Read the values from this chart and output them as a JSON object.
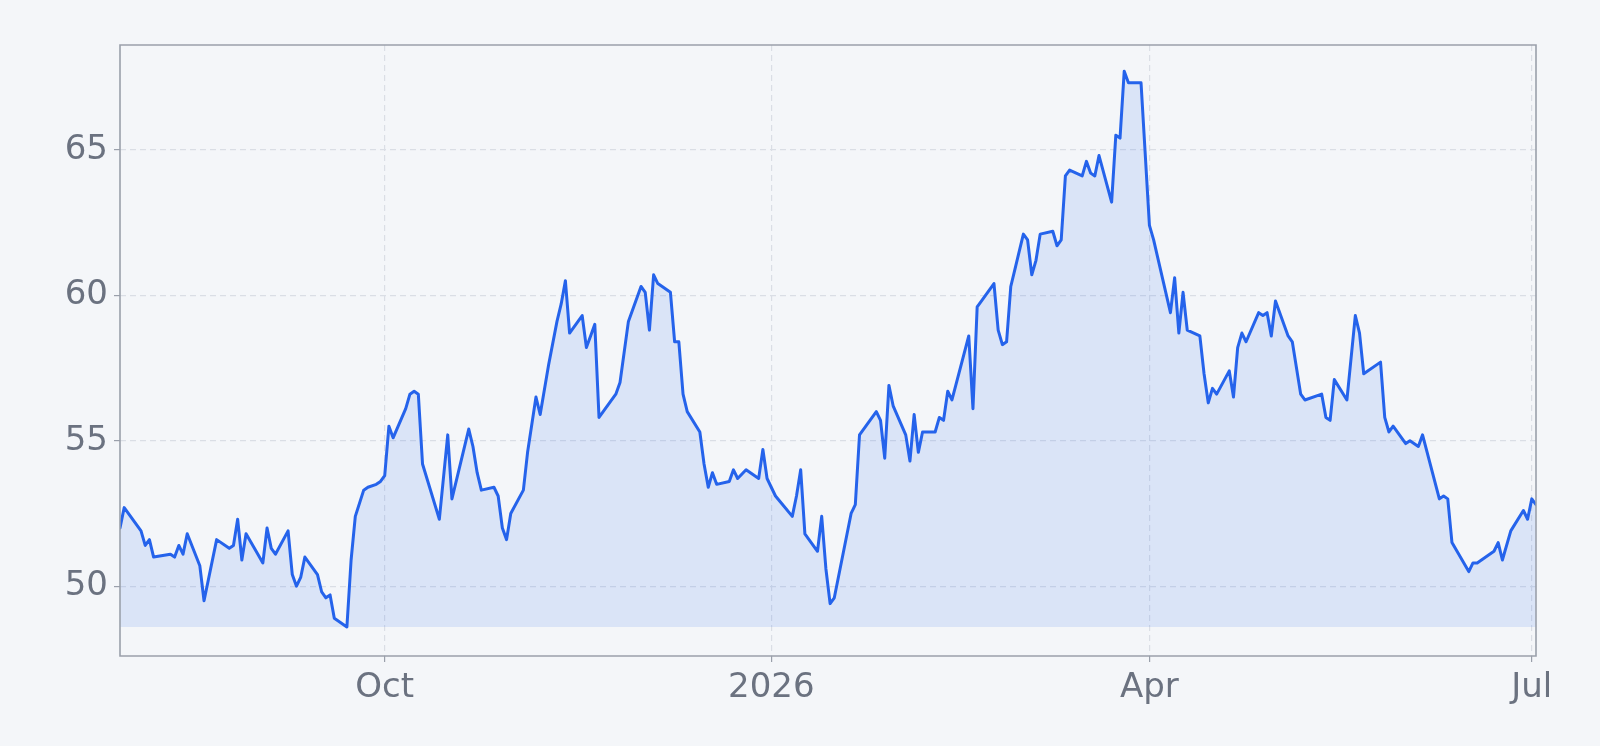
{
  "chart_data": {
    "type": "area",
    "color": "#2563eb",
    "grid": true,
    "xlim": [
      "2025-07-30",
      "2026-07-02"
    ],
    "xticks": [
      {
        "value": "2025-10-01",
        "label": "Oct"
      },
      {
        "value": "2026-01-01",
        "label": "2026"
      },
      {
        "value": "2026-04-01",
        "label": "Apr"
      },
      {
        "value": "2026-07-01",
        "label": "Jul"
      }
    ],
    "ylim": [
      47.6,
      68.6
    ],
    "yticks": [
      50,
      55,
      60,
      65
    ],
    "x": [
      "2025-07-30",
      "2025-07-31",
      "2025-08-04",
      "2025-08-05",
      "2025-08-06",
      "2025-08-07",
      "2025-08-11",
      "2025-08-12",
      "2025-08-13",
      "2025-08-14",
      "2025-08-15",
      "2025-08-18",
      "2025-08-19",
      "2025-08-22",
      "2025-08-25",
      "2025-08-26",
      "2025-08-27",
      "2025-08-28",
      "2025-08-29",
      "2025-09-02",
      "2025-09-03",
      "2025-09-04",
      "2025-09-05",
      "2025-09-08",
      "2025-09-09",
      "2025-09-10",
      "2025-09-11",
      "2025-09-12",
      "2025-09-15",
      "2025-09-16",
      "2025-09-17",
      "2025-09-18",
      "2025-09-19",
      "2025-09-22",
      "2025-09-23",
      "2025-09-24",
      "2025-09-26",
      "2025-09-27",
      "2025-09-29",
      "2025-09-30",
      "2025-10-01",
      "2025-10-02",
      "2025-10-03",
      "2025-10-06",
      "2025-10-07",
      "2025-10-08",
      "2025-10-09",
      "2025-10-10",
      "2025-10-14",
      "2025-10-16",
      "2025-10-17",
      "2025-10-21",
      "2025-10-22",
      "2025-10-23",
      "2025-10-24",
      "2025-10-27",
      "2025-10-28",
      "2025-10-29",
      "2025-10-30",
      "2025-10-31",
      "2025-11-03",
      "2025-11-04",
      "2025-11-06",
      "2025-11-07",
      "2025-11-09",
      "2025-11-11",
      "2025-11-12",
      "2025-11-13",
      "2025-11-14",
      "2025-11-17",
      "2025-11-18",
      "2025-11-19",
      "2025-11-20",
      "2025-11-21",
      "2025-11-25",
      "2025-11-26",
      "2025-11-28",
      "2025-12-01",
      "2025-12-02",
      "2025-12-03",
      "2025-12-04",
      "2025-12-05",
      "2025-12-08",
      "2025-12-09",
      "2025-12-10",
      "2025-12-11",
      "2025-12-12",
      "2025-12-15",
      "2025-12-16",
      "2025-12-17",
      "2025-12-18",
      "2025-12-19",
      "2025-12-22",
      "2025-12-23",
      "2025-12-24",
      "2025-12-26",
      "2025-12-29",
      "2025-12-30",
      "2025-12-31",
      "2026-01-02",
      "2026-01-06",
      "2026-01-07",
      "2026-01-08",
      "2026-01-09",
      "2026-01-12",
      "2026-01-13",
      "2026-01-14",
      "2026-01-15",
      "2026-01-16",
      "2026-01-20",
      "2026-01-21",
      "2026-01-22",
      "2026-01-26",
      "2026-01-27",
      "2026-01-28",
      "2026-01-29",
      "2026-01-30",
      "2026-02-02",
      "2026-02-03",
      "2026-02-04",
      "2026-02-05",
      "2026-02-06",
      "2026-02-09",
      "2026-02-10",
      "2026-02-11",
      "2026-02-12",
      "2026-02-13",
      "2026-02-17",
      "2026-02-18",
      "2026-02-19",
      "2026-02-20",
      "2026-02-23",
      "2026-02-24",
      "2026-02-25",
      "2026-02-26",
      "2026-02-27",
      "2026-03-02",
      "2026-03-03",
      "2026-03-04",
      "2026-03-05",
      "2026-03-06",
      "2026-03-09",
      "2026-03-10",
      "2026-03-11",
      "2026-03-12",
      "2026-03-13",
      "2026-03-16",
      "2026-03-17",
      "2026-03-18",
      "2026-03-19",
      "2026-03-20",
      "2026-03-23",
      "2026-03-24",
      "2026-03-25",
      "2026-03-26",
      "2026-03-27",
      "2026-03-30",
      "2026-04-01",
      "2026-04-02",
      "2026-04-06",
      "2026-04-07",
      "2026-04-08",
      "2026-04-09",
      "2026-04-10",
      "2026-04-13",
      "2026-04-14",
      "2026-04-15",
      "2026-04-16",
      "2026-04-17",
      "2026-04-20",
      "2026-04-21",
      "2026-04-22",
      "2026-04-23",
      "2026-04-24",
      "2026-04-27",
      "2026-04-28",
      "2026-04-29",
      "2026-04-30",
      "2026-05-01",
      "2026-05-04",
      "2026-05-05",
      "2026-05-07",
      "2026-05-08",
      "2026-05-12",
      "2026-05-13",
      "2026-05-14",
      "2026-05-15",
      "2026-05-18",
      "2026-05-20",
      "2026-05-21",
      "2026-05-22",
      "2026-05-26",
      "2026-05-27",
      "2026-05-28",
      "2026-05-29",
      "2026-06-01",
      "2026-06-02",
      "2026-06-04",
      "2026-06-05",
      "2026-06-09",
      "2026-06-10",
      "2026-06-11",
      "2026-06-12",
      "2026-06-16",
      "2026-06-17",
      "2026-06-18",
      "2026-06-22",
      "2026-06-23",
      "2026-06-24",
      "2026-06-26",
      "2026-06-29",
      "2026-06-30",
      "2026-07-01",
      "2026-07-02"
    ],
    "values": [
      52.0,
      52.7,
      51.9,
      51.4,
      51.6,
      51.0,
      51.1,
      51.0,
      51.4,
      51.1,
      51.8,
      50.7,
      49.5,
      51.6,
      51.3,
      51.4,
      52.3,
      50.9,
      51.8,
      50.8,
      52.0,
      51.3,
      51.1,
      51.9,
      50.4,
      50.0,
      50.3,
      51.0,
      50.4,
      49.8,
      49.6,
      49.7,
      48.9,
      48.6,
      50.9,
      52.4,
      53.3,
      53.4,
      53.5,
      53.6,
      53.8,
      55.5,
      55.1,
      56.1,
      56.6,
      56.7,
      56.6,
      54.2,
      52.3,
      55.2,
      53.0,
      55.4,
      54.8,
      53.9,
      53.3,
      53.4,
      53.1,
      52.0,
      51.6,
      52.5,
      53.3,
      54.6,
      56.5,
      55.9,
      57.6,
      59.1,
      59.7,
      60.5,
      58.7,
      59.3,
      58.2,
      58.6,
      59.0,
      55.8,
      56.6,
      57.0,
      59.1,
      60.3,
      60.1,
      58.8,
      60.7,
      60.4,
      60.1,
      58.4,
      58.4,
      56.6,
      56.0,
      55.3,
      54.2,
      53.4,
      53.9,
      53.5,
      53.6,
      54.0,
      53.7,
      54.0,
      53.7,
      54.7,
      53.7,
      53.1,
      52.4,
      53.1,
      54.0,
      51.8,
      51.2,
      52.4,
      50.6,
      49.4,
      49.6,
      52.5,
      52.8,
      55.2,
      56.0,
      55.7,
      54.4,
      56.9,
      56.2,
      55.2,
      54.3,
      55.9,
      54.6,
      55.3,
      55.3,
      55.8,
      55.7,
      56.7,
      56.4,
      58.6,
      56.1,
      59.6,
      59.8,
      60.4,
      58.8,
      58.3,
      58.4,
      60.3,
      62.1,
      61.9,
      60.7,
      61.2,
      62.1,
      62.2,
      61.7,
      61.9,
      64.1,
      64.3,
      64.1,
      64.6,
      64.2,
      64.1,
      64.8,
      63.2,
      65.5,
      65.4,
      67.7,
      67.3,
      67.3,
      62.4,
      61.9,
      59.4,
      60.6,
      58.7,
      60.1,
      58.8,
      58.6,
      57.3,
      56.3,
      56.8,
      56.6,
      57.4,
      56.5,
      58.2,
      58.7,
      58.4,
      59.4,
      59.3,
      59.4,
      58.6,
      59.8,
      58.6,
      58.4,
      56.6,
      56.4,
      56.6,
      55.8,
      55.7,
      57.1,
      56.4,
      59.3,
      58.7,
      57.3,
      57.7,
      55.8,
      55.3,
      55.5,
      54.9,
      55.0,
      54.8,
      55.2,
      53.0,
      53.1,
      53.0,
      51.5,
      50.5,
      50.8,
      50.8,
      51.2,
      51.5,
      50.9,
      51.9,
      52.6,
      52.3,
      53.0,
      52.8
    ]
  }
}
